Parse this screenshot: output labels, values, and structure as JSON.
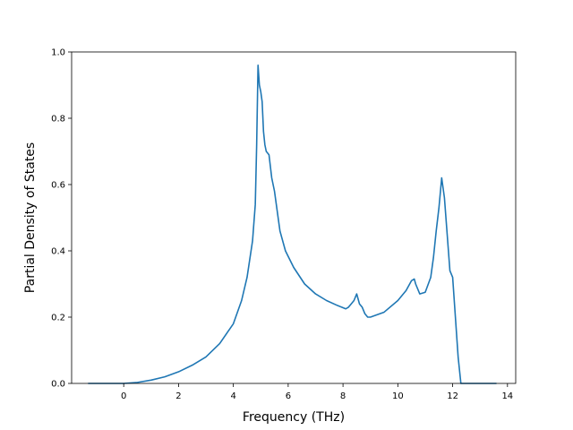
{
  "chart_data": {
    "type": "line",
    "title": "",
    "xlabel": "Frequency (THz)",
    "ylabel": "Partial Density of States",
    "xlim": [
      -1.9,
      14.3
    ],
    "ylim": [
      0.0,
      1.0
    ],
    "xticks": [
      0,
      2,
      4,
      6,
      8,
      10,
      12,
      14
    ],
    "xtick_labels": [
      "0",
      "2",
      "4",
      "6",
      "8",
      "10",
      "12",
      "14"
    ],
    "yticks": [
      0.0,
      0.2,
      0.4,
      0.6,
      0.8,
      1.0
    ],
    "ytick_labels": [
      "0.0",
      "0.2",
      "0.4",
      "0.6",
      "0.8",
      "1.0"
    ],
    "grid": false,
    "legend": "none",
    "series": [
      {
        "color": "#1f77b4",
        "x": [
          -1.3,
          -0.5,
          0.0,
          0.5,
          1.0,
          1.5,
          2.0,
          2.5,
          3.0,
          3.5,
          4.0,
          4.3,
          4.5,
          4.7,
          4.8,
          4.85,
          4.9,
          4.95,
          5.0,
          5.05,
          5.1,
          5.15,
          5.2,
          5.3,
          5.4,
          5.5,
          5.6,
          5.7,
          5.9,
          6.2,
          6.6,
          7.0,
          7.4,
          7.8,
          8.1,
          8.2,
          8.3,
          8.4,
          8.5,
          8.55,
          8.6,
          8.7,
          8.8,
          8.9,
          9.0,
          9.5,
          10.0,
          10.3,
          10.5,
          10.6,
          10.65,
          10.8,
          11.0,
          11.2,
          11.3,
          11.4,
          11.5,
          11.6,
          11.7,
          11.8,
          11.9,
          12.0,
          12.1,
          12.2,
          12.3,
          12.4,
          13.0,
          13.6
        ],
        "y": [
          0.0,
          0.0,
          0.0,
          0.003,
          0.01,
          0.02,
          0.035,
          0.055,
          0.08,
          0.12,
          0.18,
          0.25,
          0.32,
          0.43,
          0.54,
          0.72,
          0.96,
          0.9,
          0.88,
          0.85,
          0.76,
          0.72,
          0.7,
          0.69,
          0.62,
          0.58,
          0.52,
          0.46,
          0.4,
          0.35,
          0.3,
          0.27,
          0.25,
          0.235,
          0.225,
          0.23,
          0.24,
          0.25,
          0.27,
          0.255,
          0.24,
          0.23,
          0.21,
          0.2,
          0.2,
          0.215,
          0.25,
          0.28,
          0.31,
          0.315,
          0.3,
          0.27,
          0.275,
          0.32,
          0.38,
          0.46,
          0.53,
          0.62,
          0.56,
          0.45,
          0.34,
          0.32,
          0.2,
          0.08,
          0.0,
          0.0,
          0.0,
          0.0
        ]
      }
    ]
  }
}
